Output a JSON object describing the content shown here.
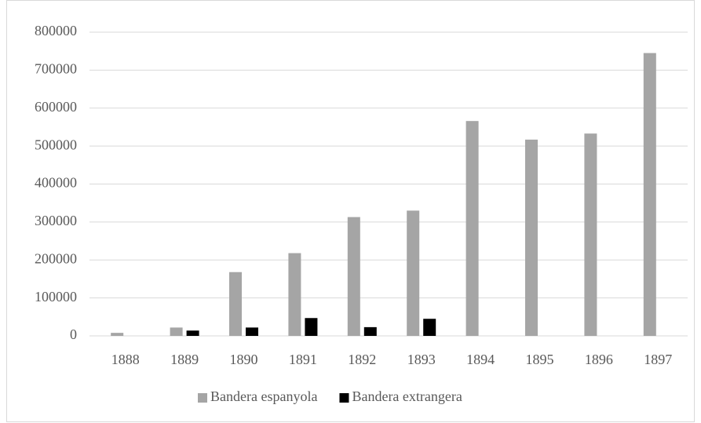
{
  "chart_data": {
    "type": "bar",
    "categories": [
      "1888",
      "1889",
      "1890",
      "1891",
      "1892",
      "1893",
      "1894",
      "1895",
      "1896",
      "1897"
    ],
    "series": [
      {
        "name": "Bandera espanyola",
        "color": "#a5a5a5",
        "values": [
          8000,
          22000,
          168000,
          218000,
          313000,
          330000,
          566000,
          517000,
          533000,
          745000
        ]
      },
      {
        "name": "Bandera extrangera",
        "color": "#000000",
        "values": [
          0,
          14000,
          22000,
          47000,
          23000,
          45000,
          0,
          0,
          0,
          0
        ]
      }
    ],
    "ylim": [
      0,
      800000
    ],
    "yticks": [
      0,
      100000,
      200000,
      300000,
      400000,
      500000,
      600000,
      700000,
      800000
    ],
    "grid": true,
    "legend": "bottom"
  }
}
